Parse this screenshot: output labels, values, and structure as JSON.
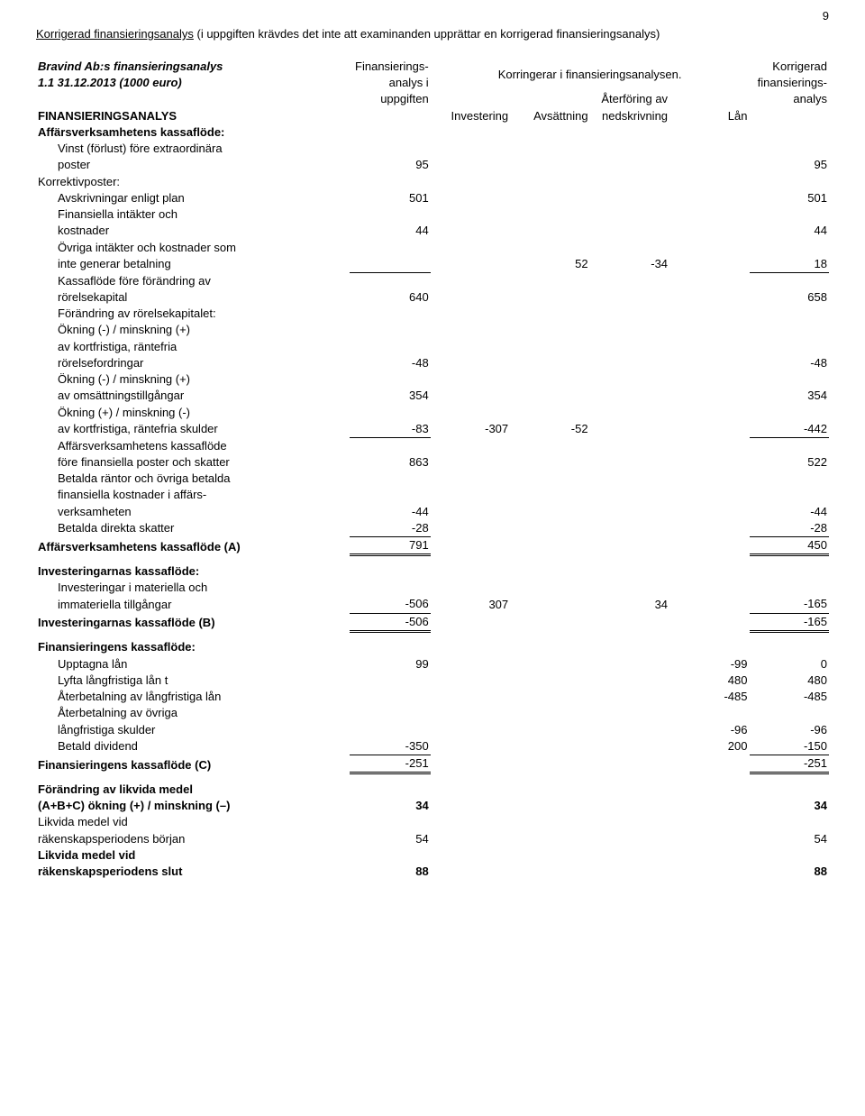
{
  "page_number": "9",
  "intro_line1": "Korrigerad finansieringsanalys",
  "intro_line2": " (i uppgiften krävdes det inte att examinanden upprättar en korrigerad finansieringsanalys)",
  "title_line1": "Bravind Ab:s finansieringsanalys",
  "title_line2": "1.1 31.12.2013 (1000 euro)",
  "hdr_col1_l1": "Finansierings-",
  "hdr_col1_l2": "analys i",
  "hdr_col1_l3": "uppgiften",
  "hdr_mid": "Korringerar i finansieringsanalysen.",
  "hdr_right_l1": "Korrigerad",
  "hdr_right_l2": "finansierings-",
  "hdr_right_l3": "analys",
  "hdr_sub_inv": "Investering",
  "hdr_sub_avs": "Avsättning",
  "hdr_sub_ater_l1": "Återföring av",
  "hdr_sub_ater_l2": "nedskrivning",
  "hdr_sub_lan": "Lån",
  "r_fin": "FINANSIERINGSANALYS",
  "r_aff_hdr": "Affärsverksamhetens kassaflöde:",
  "r_vinst_l1": "Vinst (förlust) före extraordinära",
  "r_vinst_l2": "poster",
  "r_vinst_v1": "95",
  "r_vinst_v6": "95",
  "r_korr": "Korrektivposter:",
  "r_avskr": "Avskrivningar enligt plan",
  "r_avskr_v1": "501",
  "r_avskr_v6": "501",
  "r_finint_l1": "Finansiella intäkter och",
  "r_finint_l2": "kostnader",
  "r_finint_v1": "44",
  "r_finint_v6": "44",
  "r_ovr_l1": "Övriga intäkter och kostnader som",
  "r_ovr_l2": "inte generar betalning",
  "r_ovr_v3": "52",
  "r_ovr_v4": "-34",
  "r_ovr_v6": "18",
  "r_kff_l1": "Kassaflöde före förändring av",
  "r_kff_l2": "rörelsekapital",
  "r_kff_v1": "640",
  "r_kff_v6": "658",
  "r_for_hdr": "Förändring av rörelsekapitalet:",
  "r_okn1_l1": "Ökning (-) / minskning (+)",
  "r_okn1_l2": "av kortfristiga, räntefria",
  "r_okn1_l3": "rörelsefordringar",
  "r_okn1_v1": "-48",
  "r_okn1_v6": "-48",
  "r_okn2_l1": "Ökning (-) / minskning (+)",
  "r_okn2_l2": "av omsättningstillgångar",
  "r_okn2_v1": "354",
  "r_okn2_v6": "354",
  "r_okn3_l1": "Ökning (+) / minskning (-)",
  "r_okn3_l2": "av kortfristiga, räntefria skulder",
  "r_okn3_v1": "-83",
  "r_okn3_v2": "-307",
  "r_okn3_v3": "-52",
  "r_okn3_v6": "-442",
  "r_affk_l1": "Affärsverksamhetens kassaflöde",
  "r_affk_l2": "före finansiella poster och skatter",
  "r_affk_v1": "863",
  "r_affk_v6": "522",
  "r_bet_l1": "Betalda räntor och övriga betalda",
  "r_bet_l2": "finansiella kostnader i affärs-",
  "r_bet_l3": "verksamheten",
  "r_bet_v1": "-44",
  "r_bet_v6": "-44",
  "r_bds": "Betalda direkta skatter",
  "r_bds_v1": "-28",
  "r_bds_v6": "-28",
  "r_affA": "Affärsverksamhetens kassaflöde (A)",
  "r_affA_v1": "791",
  "r_affA_v6": "450",
  "r_inv_hdr": "Investeringarnas kassaflöde:",
  "r_invm_l1": "Investeringar i materiella och",
  "r_invm_l2": "immateriella tillgångar",
  "r_invm_v1": "-506",
  "r_invm_v2": "307",
  "r_invm_v4": "34",
  "r_invm_v6": "-165",
  "r_invB": "Investeringarnas kassaflöde (B)",
  "r_invB_v1": "-506",
  "r_invB_v6": "-165",
  "r_finhdr": "Finansieringens kassaflöde:",
  "r_upp": "Upptagna lån",
  "r_upp_v1": "99",
  "r_upp_v5": "-99",
  "r_upp_v6": "0",
  "r_lyft": "Lyfta långfristiga lån t",
  "r_lyft_v5": "480",
  "r_lyft_v6": "480",
  "r_aterb": "Återbetalning av långfristiga lån",
  "r_aterb_v5": "-485",
  "r_aterb_v6": "-485",
  "r_aterbo_l1": "Återbetalning av övriga",
  "r_aterbo_l2": "långfristiga skulder",
  "r_aterbo_v5": "-96",
  "r_aterbo_v6": "-96",
  "r_betdiv": "Betald dividend",
  "r_betdiv_v1": "-350",
  "r_betdiv_v5": "200",
  "r_betdiv_v6": "-150",
  "r_finC": "Finansieringens kassaflöde (C)",
  "r_finC_v1": "-251",
  "r_finC_v6": "-251",
  "r_for_l1": "Förändring av likvida medel",
  "r_for_l2": "(A+B+C) ökning (+) / minskning (–)",
  "r_for_v1": "34",
  "r_for_v6": "34",
  "r_lmb_l1": "Likvida medel vid",
  "r_lmb_l2": "räkenskapsperiodens början",
  "r_lmb_v1": "54",
  "r_lmb_v6": "54",
  "r_lms_l1": "Likvida medel vid",
  "r_lms_l2": "räkenskapsperiodens slut",
  "r_lms_v1": "88",
  "r_lms_v6": "88"
}
